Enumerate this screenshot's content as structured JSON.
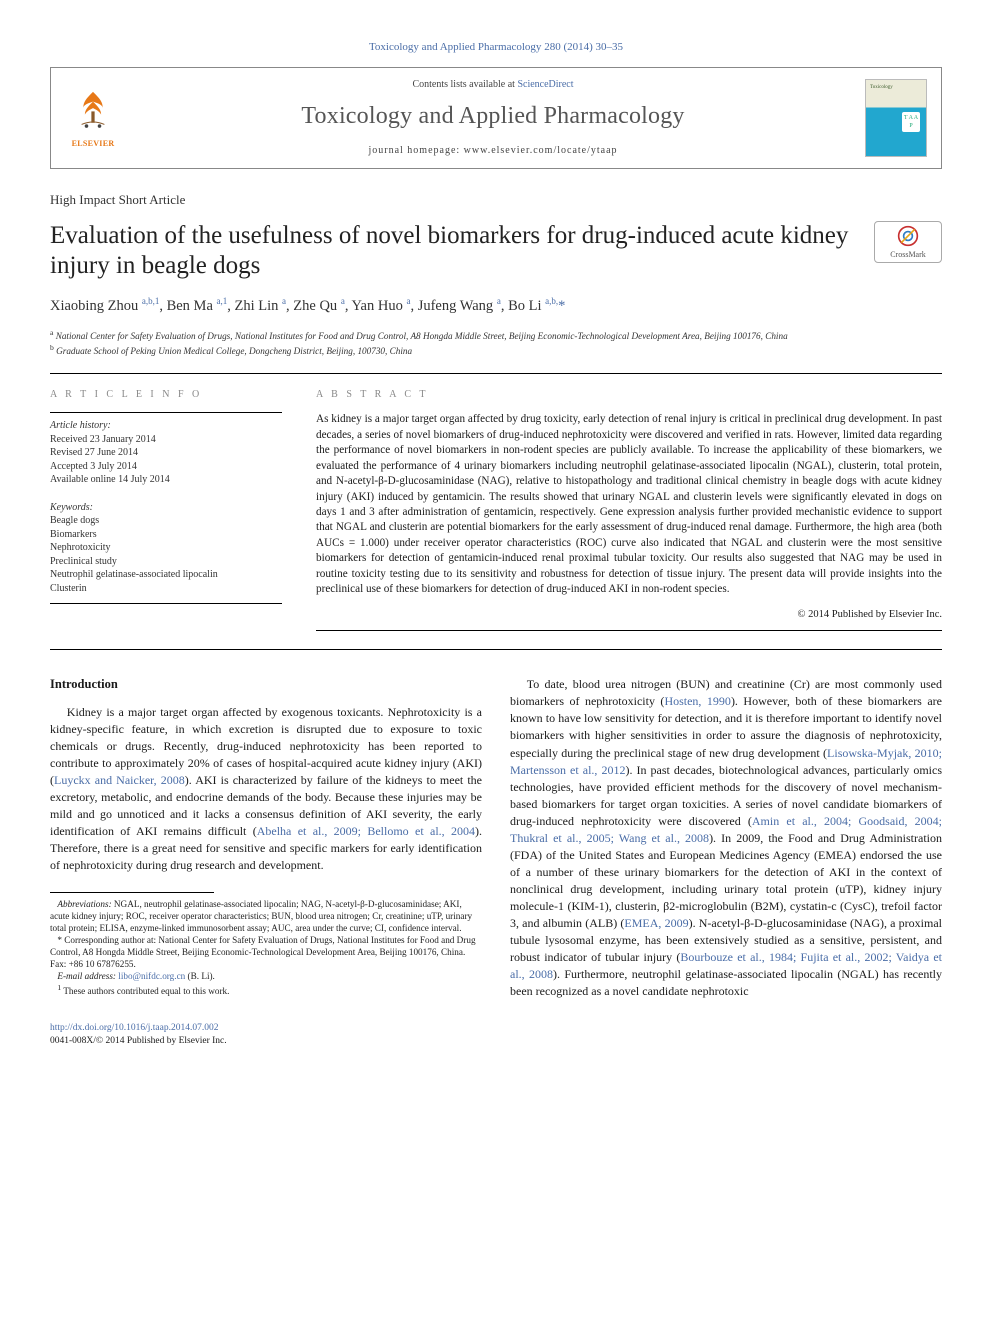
{
  "top_link": {
    "journal": "Toxicology and Applied Pharmacology",
    "vol_pages": " 280 (2014) 30–35"
  },
  "header": {
    "contents_prefix": "Contents lists available at ",
    "contents_link": "ScienceDirect",
    "journal_name": "Toxicology and Applied Pharmacology",
    "homepage_label": "journal homepage: ",
    "homepage_url": "www.elsevier.com/locate/ytaap",
    "publisher_name": "ELSEVIER"
  },
  "cover": {
    "a": "Toxicology",
    "b": "T A A P"
  },
  "crossmark_label": "CrossMark",
  "article_type": "High Impact Short Article",
  "title": "Evaluation of the usefulness of novel biomarkers for drug-induced acute kidney injury in beagle dogs",
  "authors_html": "Xiaobing Zhou <sup>a,b,1</sup>, Ben Ma <sup>a,1</sup>, Zhi Lin <sup>a</sup>, Zhe Qu <sup>a</sup>, Yan Huo <sup>a</sup>, Jufeng Wang <sup>a</sup>, Bo Li <sup>a,b,</sup><span class='ast'>*</span>",
  "affiliations": {
    "a": "National Center for Safety Evaluation of Drugs, National Institutes for Food and Drug Control, A8 Hongda Middle Street, Beijing Economic-Technological Development Area, Beijing 100176, China",
    "b": "Graduate School of Peking Union Medical College, Dongcheng District, Beijing, 100730, China"
  },
  "article_info": {
    "heading": "A R T I C L E   I N F O",
    "history_h": "Article history:",
    "received": "Received 23 January 2014",
    "revised": "Revised 27 June 2014",
    "accepted": "Accepted 3 July 2014",
    "online": "Available online 14 July 2014",
    "keywords_h": "Keywords:",
    "keywords": [
      "Beagle dogs",
      "Biomarkers",
      "Nephrotoxicity",
      "Preclinical study",
      "Neutrophil gelatinase-associated lipocalin",
      "Clusterin"
    ]
  },
  "abstract": {
    "heading": "A B S T R A C T",
    "text": "As kidney is a major target organ affected by drug toxicity, early detection of renal injury is critical in preclinical drug development. In past decades, a series of novel biomarkers of drug-induced nephrotoxicity were discovered and verified in rats. However, limited data regarding the performance of novel biomarkers in non-rodent species are publicly available. To increase the applicability of these biomarkers, we evaluated the performance of 4 urinary biomarkers including neutrophil gelatinase-associated lipocalin (NGAL), clusterin, total protein, and N-acetyl-β-D-glucosaminidase (NAG), relative to histopathology and traditional clinical chemistry in beagle dogs with acute kidney injury (AKI) induced by gentamicin. The results showed that urinary NGAL and clusterin levels were significantly elevated in dogs on days 1 and 3 after administration of gentamicin, respectively. Gene expression analysis further provided mechanistic evidence to support that NGAL and clusterin are potential biomarkers for the early assessment of drug-induced renal damage. Furthermore, the high area (both AUCs = 1.000) under receiver operator characteristics (ROC) curve also indicated that NGAL and clusterin were the most sensitive biomarkers for detection of gentamicin-induced renal proximal tubular toxicity. Our results also suggested that NAG may be used in routine toxicity testing due to its sensitivity and robustness for detection of tissue injury. The present data will provide insights into the preclinical use of these biomarkers for detection of drug-induced AKI in non-rodent species.",
    "copyright": "© 2014 Published by Elsevier Inc."
  },
  "body": {
    "intro_h": "Introduction",
    "p1a": "Kidney is a major target organ affected by exogenous toxicants. Nephrotoxicity is a kidney-specific feature, in which excretion is disrupted due to exposure to toxic chemicals or drugs. Recently, drug-induced nephrotoxicity has been reported to contribute to approximately 20% of cases of hospital-acquired acute kidney injury (AKI) (",
    "p1_l1": "Luyckx and Naicker, 2008",
    "p1b": "). AKI is characterized by failure of the kidneys to meet the excretory, metabolic, and endocrine demands of the body. Because these injuries may be mild and go unnoticed and it lacks a consensus definition of AKI severity, the early identification of AKI remains difficult (",
    "p1_l2": "Abelha et al., 2009; Bellomo et al., 2004",
    "p1c": "). Therefore, there is a great need for sensitive and specific markers for early identification of nephrotoxicity during drug research and development.",
    "p2a": "To date, blood urea nitrogen (BUN) and creatinine (Cr) are most commonly used biomarkers of nephrotoxicity (",
    "p2_l1": "Hosten, 1990",
    "p2b": "). However, both of these biomarkers are known to have low sensitivity for detection, and it is therefore important to identify novel biomarkers with higher sensitivities in order to assure the diagnosis of nephrotoxicity, especially during the preclinical stage of new drug development (",
    "p2_l2": "Lisowska-Myjak, 2010; Martensson et al., 2012",
    "p2c": "). In past decades, biotechnological advances, particularly omics technologies, have provided efficient methods for the discovery of novel mechanism-based biomarkers for target organ toxicities. A series of novel candidate biomarkers of drug-induced nephrotoxicity were discovered (",
    "p2_l3": "Amin et al., 2004; Goodsaid, 2004; Thukral et al., 2005; Wang et al., 2008",
    "p2d": "). In 2009, the Food and Drug Administration (FDA) of the United States and European Medicines Agency (EMEA) endorsed the use of a number of these urinary biomarkers for the detection of AKI in the context of nonclinical drug development, including urinary total protein (uTP), kidney injury molecule-1 (KIM-1), clusterin, β2-microglobulin (B2M), cystatin-c (CysC), trefoil factor 3, and albumin (ALB) (",
    "p2_l4": "EMEA, 2009",
    "p2e": "). N-acetyl-β-D-glucosaminidase (NAG), a proximal tubule lysosomal enzyme, has been extensively studied as a sensitive, persistent, and robust indicator of tubular injury (",
    "p2_l5": "Bourbouze et al., 1984; Fujita et al., 2002; Vaidya et al., 2008",
    "p2f": "). Furthermore, neutrophil gelatinase-associated lipocalin (NGAL) has recently been recognized as a novel candidate nephrotoxic"
  },
  "footnotes": {
    "abbrev_h": "Abbreviations:",
    "abbrev": " NGAL, neutrophil gelatinase-associated lipocalin; NAG, N-acetyl-β-D-glucosaminidase; AKI, acute kidney injury; ROC, receiver operator characteristics; BUN, blood urea nitrogen; Cr, creatinine; uTP, urinary total protein; ELISA, enzyme-linked immunosorbent assay; AUC, area under the curve; CI, confidence interval.",
    "corr_mark": "*",
    "corr": " Corresponding author at: National Center for Safety Evaluation of Drugs, National Institutes for Food and Drug Control, A8 Hongda Middle Street, Beijing Economic-Technological Development Area, Beijing 100176, China. Fax: +86 10 67876255.",
    "email_h": "E-mail address:",
    "email": "libo@nifdc.org.cn",
    "email_tail": " (B. Li).",
    "eq_mark": "1",
    "eq": " These authors contributed equal to this work."
  },
  "footer": {
    "doi": "http://dx.doi.org/10.1016/j.taap.2014.07.002",
    "issn_line": "0041-008X/© 2014 Published by Elsevier Inc."
  },
  "colors": {
    "link": "#4a6da7",
    "elsevier": "#e77817",
    "grey_heading": "#888888",
    "rule": "#000000"
  }
}
